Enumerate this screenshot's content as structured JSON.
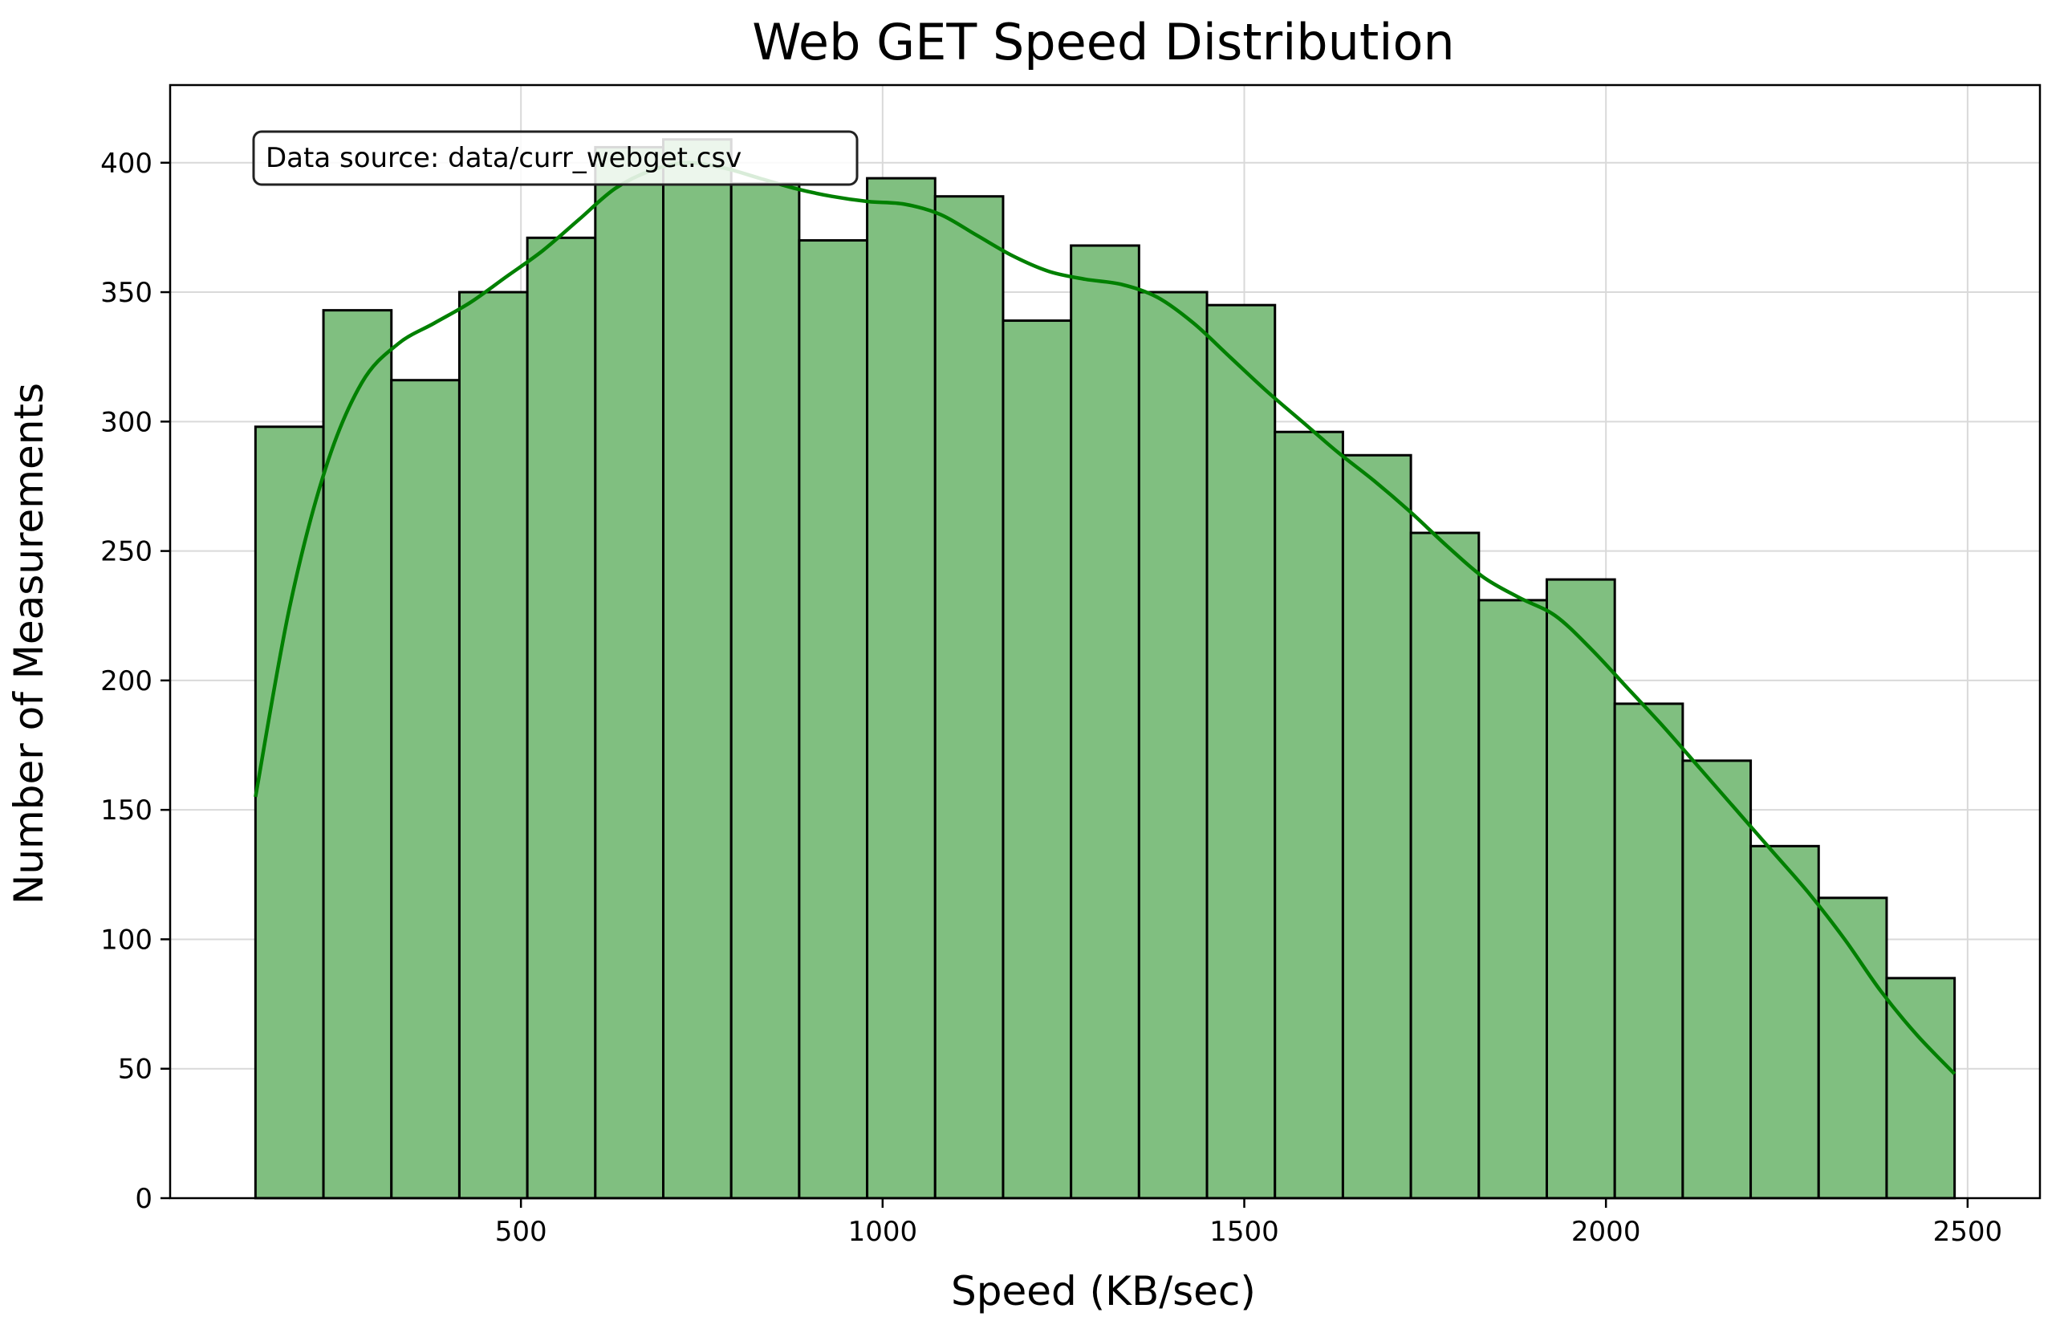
{
  "chart_data": {
    "type": "bar",
    "title": "Web GET Speed Distribution",
    "xlabel": "Speed (KB/sec)",
    "ylabel": "Number of Measurements",
    "annotation": "Data source: data/curr_webget.csv",
    "xlim": [
      15,
      2600
    ],
    "ylim": [
      0,
      430
    ],
    "xticks": [
      500,
      1000,
      1500,
      2000,
      2500
    ],
    "yticks": [
      0,
      50,
      100,
      150,
      200,
      250,
      300,
      350,
      400
    ],
    "grid": true,
    "bar_color": "#80bf80",
    "edge_color": "#000000",
    "kde_color": "#008000",
    "bins": {
      "x_start": 133,
      "x_end": 2482,
      "counts": [
        298,
        343,
        316,
        350,
        371,
        406,
        409,
        392,
        370,
        394,
        387,
        339,
        368,
        350,
        345,
        296,
        287,
        257,
        231,
        239,
        191,
        169,
        136,
        116,
        85
      ]
    },
    "kde_curve": {
      "x": [
        133,
        180,
        230,
        280,
        330,
        380,
        430,
        480,
        530,
        580,
        630,
        680,
        730,
        780,
        830,
        880,
        930,
        980,
        1030,
        1080,
        1130,
        1180,
        1230,
        1280,
        1330,
        1380,
        1430,
        1480,
        1530,
        1580,
        1630,
        1680,
        1730,
        1780,
        1830,
        1880,
        1930,
        1980,
        2030,
        2080,
        2130,
        2180,
        2230,
        2280,
        2330,
        2380,
        2430,
        2482
      ],
      "y": [
        155,
        228,
        282,
        315,
        330,
        338,
        346,
        356,
        366,
        378,
        390,
        397,
        400,
        398,
        394,
        390,
        387,
        385,
        384,
        380,
        372,
        364,
        358,
        355,
        353,
        348,
        338,
        325,
        312,
        300,
        288,
        277,
        265,
        252,
        240,
        232,
        225,
        212,
        197,
        182,
        166,
        150,
        134,
        118,
        100,
        80,
        63,
        48
      ]
    }
  }
}
